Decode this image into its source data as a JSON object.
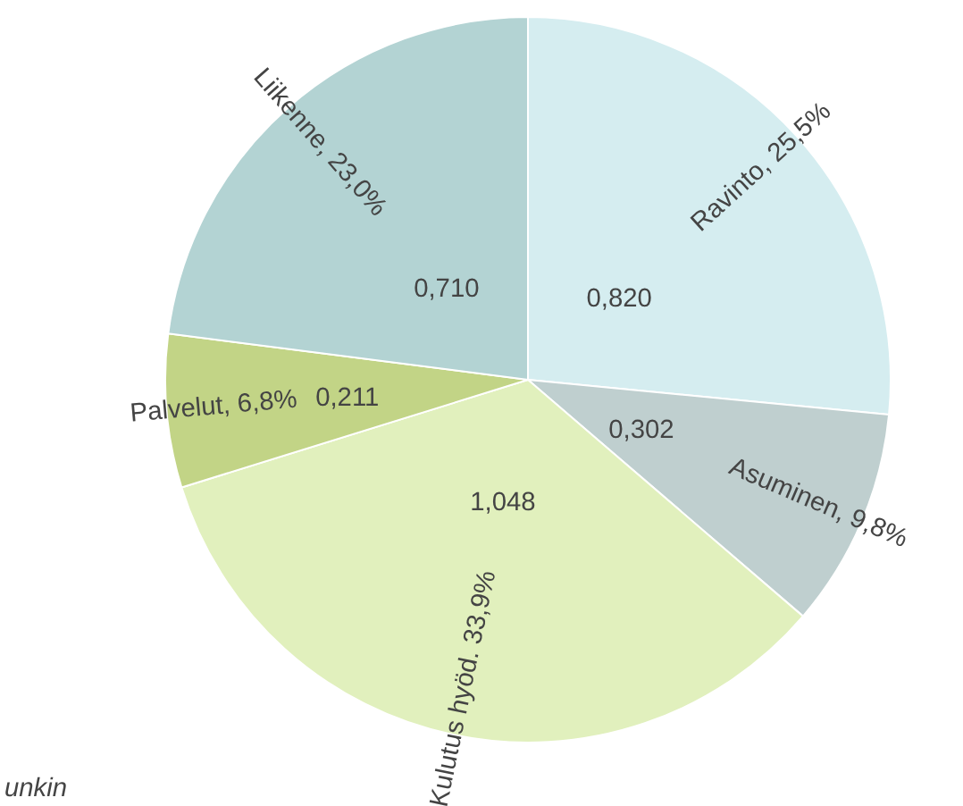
{
  "chart_data": {
    "type": "pie",
    "categories": [
      "Ravinto, 25,5%",
      "Asuminen, 9,8%",
      "Kulutus hyöd. 33,9%",
      "Palvelut, 6,8%",
      "Liikenne, 23,0%"
    ],
    "values": [
      0.82,
      0.302,
      1.048,
      0.211,
      0.71
    ],
    "value_labels": [
      "0,820",
      "0,302",
      "1,048",
      "0,211",
      "0,710"
    ],
    "colors": [
      "#d5edf0",
      "#bfcfcf",
      "#e1f0bd",
      "#c2d486",
      "#b3d3d3"
    ],
    "annotations": [
      "unkin"
    ],
    "legend": false
  }
}
